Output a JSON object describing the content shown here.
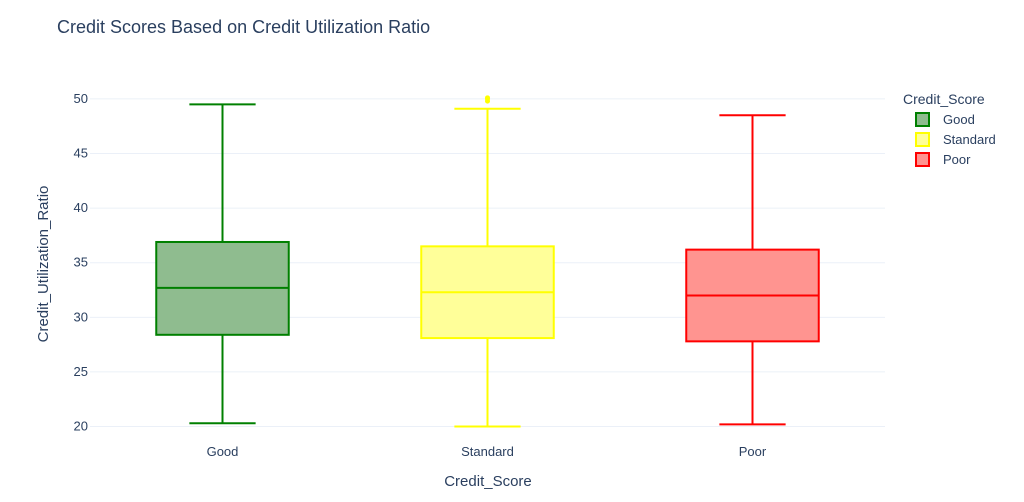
{
  "chart_data": {
    "type": "box",
    "title": "Credit Scores Based on Credit Utilization Ratio",
    "xlabel": "Credit_Score",
    "ylabel": "Credit_Utilization_Ratio",
    "categories": [
      "Good",
      "Standard",
      "Poor"
    ],
    "ylim": [
      19.5,
      51
    ],
    "yticks": [
      20,
      25,
      30,
      35,
      40,
      45,
      50
    ],
    "grid": true,
    "legend": {
      "title": "Credit_Score",
      "placement": "right-top"
    },
    "series": [
      {
        "name": "Good",
        "color": "#008000",
        "fill": "#8fbc8f",
        "min": 20.3,
        "q1": 28.4,
        "median": 32.7,
        "q3": 36.9,
        "max": 49.5,
        "outliers": []
      },
      {
        "name": "Standard",
        "color": "#ffff00",
        "fill": "#ffff99",
        "min": 20.0,
        "q1": 28.1,
        "median": 32.3,
        "q3": 36.5,
        "max": 49.1,
        "outliers": [
          49.8,
          50.0,
          50.1
        ]
      },
      {
        "name": "Poor",
        "color": "#ff0000",
        "fill": "#ff9490",
        "min": 20.2,
        "q1": 27.8,
        "median": 32.0,
        "q3": 36.2,
        "max": 48.5,
        "outliers": []
      }
    ]
  }
}
